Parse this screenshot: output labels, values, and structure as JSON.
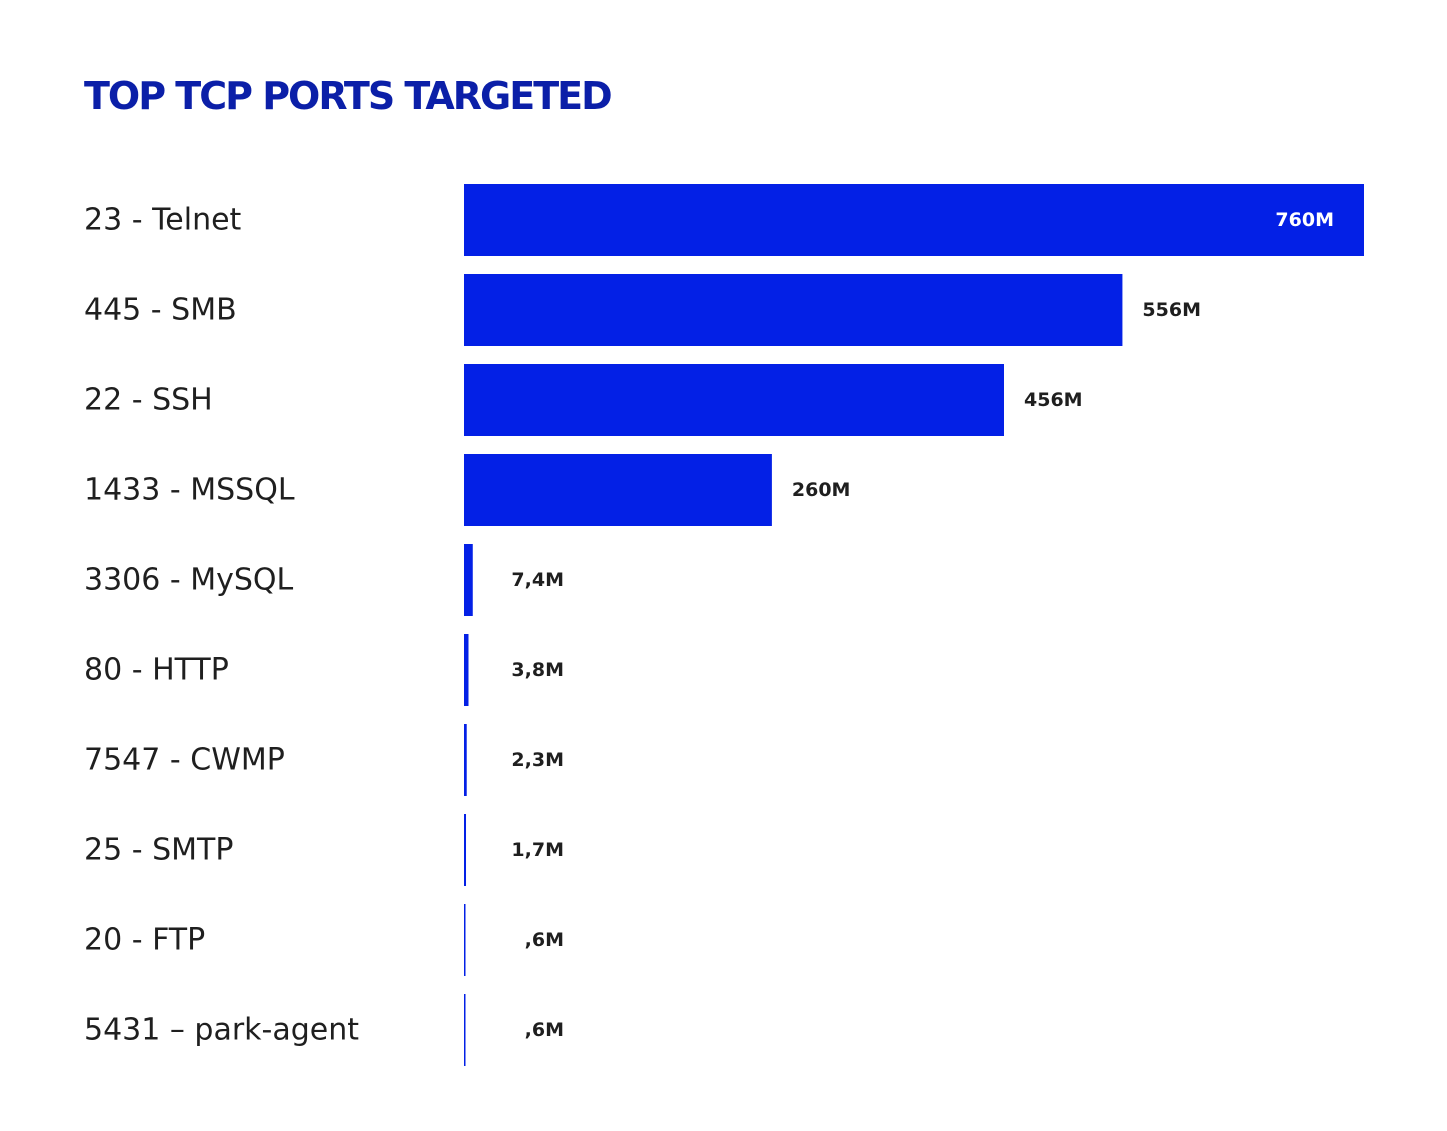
{
  "chart_data": {
    "type": "bar",
    "orientation": "horizontal",
    "title": "TOP TCP PORTS TARGETED",
    "categories": [
      "23 - Telnet",
      "445 - SMB",
      "22 - SSH",
      "1433 - MSSQL",
      "3306 - MySQL",
      "80 - HTTP",
      "7547 - CWMP",
      "25 - SMTP",
      "20 - FTP",
      "5431 – park-agent"
    ],
    "values": [
      760,
      556,
      456,
      260,
      7.4,
      3.8,
      2.3,
      1.7,
      0.6,
      0.6
    ],
    "value_labels": [
      "760M",
      "556M",
      "456M",
      "260M",
      "7,4M",
      "3,8M",
      "2,3M",
      "1,7M",
      ",6M",
      ",6M"
    ],
    "unit": "M",
    "xlim": [
      0,
      760
    ],
    "grid": false,
    "legend": "none"
  },
  "colors": {
    "bar": "#0320e6",
    "title": "#0b1fa8",
    "label": "#1f1f1f",
    "value_inside": "#ffffff",
    "value_outside": "#1f1f1f"
  }
}
